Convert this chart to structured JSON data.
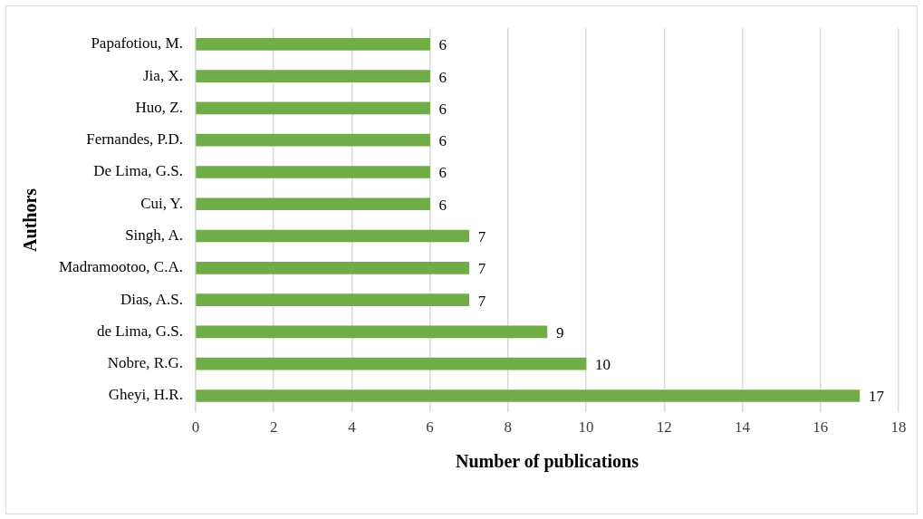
{
  "chart_data": {
    "type": "bar",
    "orientation": "horizontal",
    "xlabel": "Number of publications",
    "ylabel": "Authors",
    "categories": [
      "Papafotiou, M.",
      "Jia, X.",
      "Huo, Z.",
      "Fernandes, P.D.",
      "De Lima, G.S.",
      "Cui, Y.",
      "Singh, A.",
      "Madramootoo, C.A.",
      "Dias, A.S.",
      "de Lima, G.S.",
      "Nobre, R.G.",
      "Gheyi, H.R."
    ],
    "values": [
      6,
      6,
      6,
      6,
      6,
      6,
      7,
      7,
      7,
      9,
      10,
      17
    ],
    "color": "#70ad47",
    "xlim": [
      0,
      18
    ],
    "xticks": [
      0,
      2,
      4,
      6,
      8,
      10,
      12,
      14,
      16,
      18
    ],
    "grid": "x",
    "data_labels": true,
    "legend": false
  }
}
